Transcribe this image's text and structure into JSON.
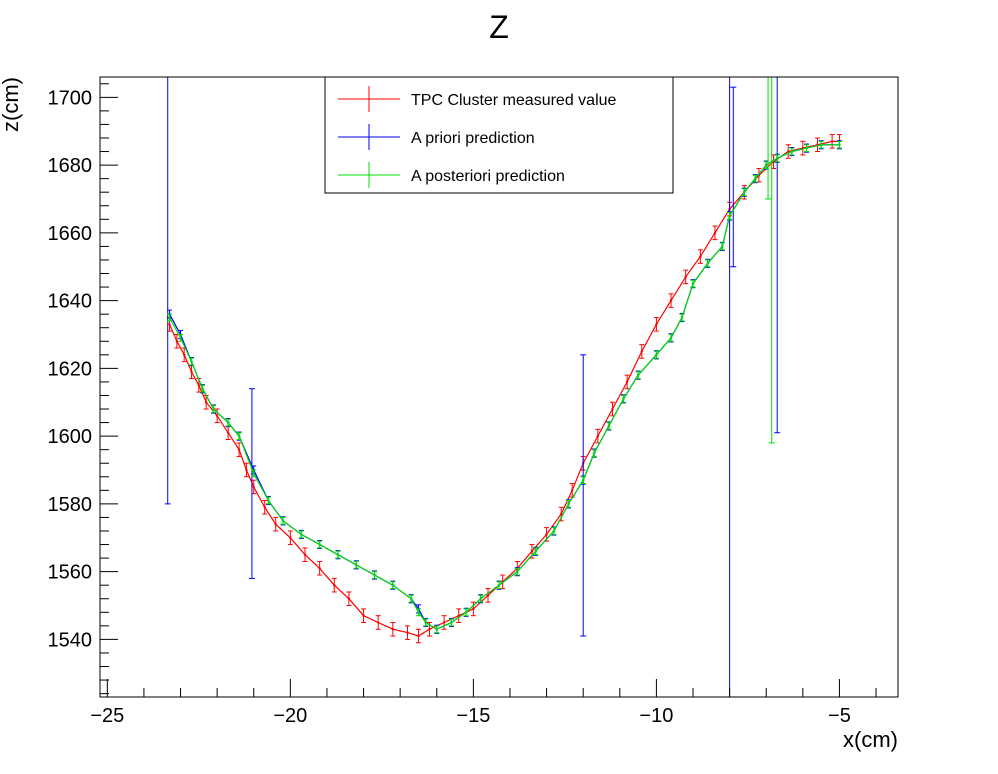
{
  "chart_data": {
    "type": "line",
    "title": "Z",
    "xlabel": "x(cm)",
    "ylabel": "z(cm)",
    "xlim": [
      -25.2,
      -3.4
    ],
    "ylim": [
      1523,
      1706
    ],
    "x_ticks": [
      -25,
      -20,
      -15,
      -10,
      -5
    ],
    "x_tick_labels": [
      "−25",
      "−20",
      "−15",
      "−10",
      "−5"
    ],
    "y_ticks": [
      1540,
      1560,
      1580,
      1600,
      1620,
      1640,
      1660,
      1680,
      1700
    ],
    "y_tick_labels": [
      "1540",
      "1560",
      "1580",
      "1600",
      "1620",
      "1640",
      "1660",
      "1680",
      "1700"
    ],
    "grid": false,
    "legend_position": "top-center",
    "series": [
      {
        "name": "TPC Cluster measured value",
        "color": "#ff0000",
        "error": 2,
        "points": [
          [
            -23.3,
            1633
          ],
          [
            -23.1,
            1628
          ],
          [
            -22.9,
            1624
          ],
          [
            -22.7,
            1619
          ],
          [
            -22.5,
            1615
          ],
          [
            -22.3,
            1610
          ],
          [
            -22.0,
            1606
          ],
          [
            -21.7,
            1601
          ],
          [
            -21.4,
            1596
          ],
          [
            -21.2,
            1590
          ],
          [
            -21.0,
            1585
          ],
          [
            -20.7,
            1579
          ],
          [
            -20.4,
            1574
          ],
          [
            -20.0,
            1570
          ],
          [
            -19.6,
            1565
          ],
          [
            -19.2,
            1561
          ],
          [
            -18.8,
            1556
          ],
          [
            -18.4,
            1552
          ],
          [
            -18.0,
            1547
          ],
          [
            -17.6,
            1545
          ],
          [
            -17.2,
            1543
          ],
          [
            -16.8,
            1542
          ],
          [
            -16.5,
            1541
          ],
          [
            -16.2,
            1543
          ],
          [
            -15.8,
            1545
          ],
          [
            -15.4,
            1547
          ],
          [
            -15.0,
            1549
          ],
          [
            -14.6,
            1553
          ],
          [
            -14.2,
            1557
          ],
          [
            -13.8,
            1561
          ],
          [
            -13.4,
            1566
          ],
          [
            -13.0,
            1571
          ],
          [
            -12.6,
            1577
          ],
          [
            -12.3,
            1584
          ],
          [
            -12.0,
            1592
          ],
          [
            -11.6,
            1600
          ],
          [
            -11.2,
            1608
          ],
          [
            -10.8,
            1616
          ],
          [
            -10.4,
            1625
          ],
          [
            -10.0,
            1633
          ],
          [
            -9.6,
            1640
          ],
          [
            -9.2,
            1647
          ],
          [
            -8.8,
            1653
          ],
          [
            -8.4,
            1660
          ],
          [
            -8.0,
            1667
          ],
          [
            -7.6,
            1672
          ],
          [
            -7.2,
            1677
          ],
          [
            -6.8,
            1681
          ],
          [
            -6.4,
            1684
          ],
          [
            -6.0,
            1685
          ],
          [
            -5.6,
            1686
          ],
          [
            -5.2,
            1687
          ],
          [
            -5.0,
            1687
          ]
        ]
      },
      {
        "name": "A priori prediction",
        "color": "#0000ff",
        "error": 1.2,
        "points": [
          [
            -23.3,
            1636
          ],
          [
            -23.0,
            1630
          ],
          [
            -22.7,
            1622
          ],
          [
            -22.4,
            1614
          ],
          [
            -22.1,
            1608
          ],
          [
            -21.7,
            1604
          ],
          [
            -21.4,
            1600
          ],
          [
            -21.0,
            1590
          ],
          [
            -20.6,
            1581
          ],
          [
            -20.2,
            1575
          ],
          [
            -19.7,
            1571
          ],
          [
            -19.2,
            1568
          ],
          [
            -18.7,
            1565
          ],
          [
            -18.2,
            1562
          ],
          [
            -17.7,
            1559
          ],
          [
            -17.2,
            1556
          ],
          [
            -16.7,
            1552
          ],
          [
            -16.5,
            1549
          ],
          [
            -16.3,
            1545
          ],
          [
            -16.0,
            1543
          ],
          [
            -15.6,
            1545
          ],
          [
            -15.2,
            1548
          ],
          [
            -14.8,
            1552
          ],
          [
            -14.3,
            1556
          ],
          [
            -13.8,
            1560
          ],
          [
            -13.3,
            1566
          ],
          [
            -12.8,
            1572
          ],
          [
            -12.4,
            1580
          ],
          [
            -12.0,
            1587
          ],
          [
            -11.7,
            1595
          ],
          [
            -11.3,
            1603
          ],
          [
            -10.9,
            1611
          ],
          [
            -10.5,
            1618
          ],
          [
            -10.0,
            1624
          ],
          [
            -9.6,
            1629
          ],
          [
            -9.3,
            1635
          ],
          [
            -9.0,
            1645
          ],
          [
            -8.6,
            1651
          ],
          [
            -8.2,
            1656
          ],
          [
            -8.0,
            1665
          ],
          [
            -7.6,
            1672
          ],
          [
            -7.3,
            1676
          ],
          [
            -7.0,
            1680
          ],
          [
            -6.7,
            1682
          ],
          [
            -6.3,
            1684
          ],
          [
            -5.9,
            1685
          ],
          [
            -5.5,
            1686
          ],
          [
            -5.0,
            1686
          ]
        ],
        "big_errors": [
          [
            -23.35,
            1580,
            1706
          ],
          [
            -21.05,
            1558,
            1614
          ],
          [
            -12.0,
            1541,
            1624
          ],
          [
            -8.0,
            1523,
            1706
          ],
          [
            -7.9,
            1650,
            1703
          ],
          [
            -6.7,
            1601,
            1706
          ]
        ]
      },
      {
        "name": "A posteriori prediction",
        "color": "#00dd00",
        "error": 1,
        "points": [
          [
            -23.3,
            1635
          ],
          [
            -23.0,
            1629
          ],
          [
            -22.7,
            1622
          ],
          [
            -22.4,
            1614
          ],
          [
            -22.1,
            1608
          ],
          [
            -21.7,
            1604
          ],
          [
            -21.4,
            1600
          ],
          [
            -21.0,
            1589
          ],
          [
            -20.6,
            1581
          ],
          [
            -20.2,
            1575
          ],
          [
            -19.7,
            1571
          ],
          [
            -19.2,
            1568
          ],
          [
            -18.7,
            1565
          ],
          [
            -18.2,
            1562
          ],
          [
            -17.7,
            1559
          ],
          [
            -17.2,
            1556
          ],
          [
            -16.7,
            1552
          ],
          [
            -16.5,
            1548
          ],
          [
            -16.3,
            1545
          ],
          [
            -16.0,
            1543
          ],
          [
            -15.6,
            1545
          ],
          [
            -15.2,
            1548
          ],
          [
            -14.8,
            1552
          ],
          [
            -14.3,
            1556
          ],
          [
            -13.8,
            1560
          ],
          [
            -13.3,
            1566
          ],
          [
            -12.8,
            1572
          ],
          [
            -12.4,
            1580
          ],
          [
            -12.0,
            1587
          ],
          [
            -11.7,
            1595
          ],
          [
            -11.3,
            1603
          ],
          [
            -10.9,
            1611
          ],
          [
            -10.5,
            1618
          ],
          [
            -10.0,
            1624
          ],
          [
            -9.6,
            1629
          ],
          [
            -9.3,
            1635
          ],
          [
            -9.0,
            1645
          ],
          [
            -8.6,
            1651
          ],
          [
            -8.2,
            1656
          ],
          [
            -8.0,
            1665
          ],
          [
            -7.6,
            1672
          ],
          [
            -7.3,
            1676
          ],
          [
            -7.0,
            1680
          ],
          [
            -6.7,
            1682
          ],
          [
            -6.3,
            1684
          ],
          [
            -5.9,
            1685
          ],
          [
            -5.5,
            1686
          ],
          [
            -5.0,
            1686
          ]
        ],
        "big_errors": [
          [
            -6.85,
            1598,
            1706
          ],
          [
            -6.95,
            1670,
            1706
          ]
        ]
      }
    ]
  }
}
